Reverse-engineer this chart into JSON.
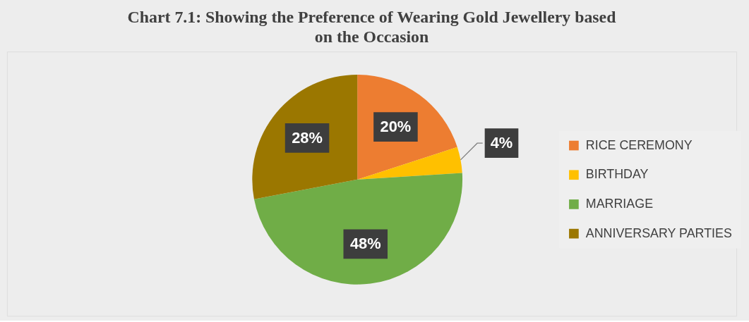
{
  "chart_data": {
    "type": "pie",
    "title": "Chart 7.1: Showing the Preference of  Wearing Gold Jewellery based on the Occasion",
    "categories": [
      "RICE CEREMONY",
      "BIRTHDAY",
      "MARRIAGE",
      "ANNIVERSARY PARTIES"
    ],
    "values": [
      20,
      4,
      48,
      28
    ],
    "colors": [
      "#ed7d31",
      "#ffc000",
      "#70ad47",
      "#9b7700"
    ],
    "value_labels": [
      "20%",
      "4%",
      "48%",
      "28%"
    ],
    "legend": "right"
  }
}
